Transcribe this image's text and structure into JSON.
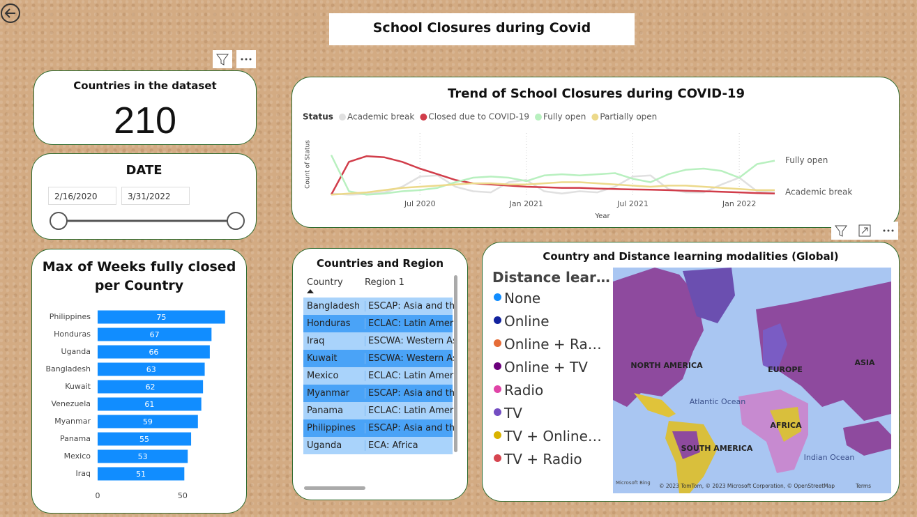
{
  "title": "School Closures during Covid",
  "kpi": {
    "label": "Countries in the dataset",
    "value": 210
  },
  "date_slicer": {
    "title": "DATE",
    "start": "2/16/2020",
    "end": "3/31/2022"
  },
  "chart_data": [
    {
      "type": "barh",
      "title": "Max of Weeks fully closed per Country",
      "categories": [
        "Philippines",
        "Honduras",
        "Uganda",
        "Bangladesh",
        "Kuwait",
        "Venezuela",
        "Myanmar",
        "Panama",
        "Mexico",
        "Iraq"
      ],
      "values": [
        75,
        67,
        66,
        63,
        62,
        61,
        59,
        55,
        53,
        51
      ],
      "color": "#118dff",
      "xlim": [
        0,
        80
      ],
      "xticks": [
        0,
        50
      ]
    },
    {
      "type": "line",
      "title": "Trend of School Closures during COVID-19",
      "legend_title": "Status",
      "xlabel": "Year",
      "ylabel": "Count of Status",
      "x": [
        "2020-02",
        "2020-03",
        "2020-04",
        "2020-05",
        "2020-06",
        "2020-07",
        "2020-08",
        "2020-09",
        "2020-10",
        "2020-11",
        "2020-12",
        "2021-01",
        "2021-02",
        "2021-03",
        "2021-04",
        "2021-05",
        "2021-06",
        "2021-07",
        "2021-08",
        "2021-09",
        "2021-10",
        "2021-11",
        "2021-12",
        "2022-01",
        "2022-02",
        "2022-03"
      ],
      "xlim": [
        "2020-02",
        "2022-03"
      ],
      "xticks": [
        {
          "value": "2020-07",
          "label": "Jul 2020"
        },
        {
          "value": "2021-01",
          "label": "Jan 2021"
        },
        {
          "value": "2021-07",
          "label": "Jul 2021"
        },
        {
          "value": "2022-01",
          "label": "Jan 2022"
        }
      ],
      "ylim": [
        0,
        200
      ],
      "grid": true,
      "series": [
        {
          "name": "Academic break",
          "color": "#e0e0e0",
          "end_label": true,
          "values": [
            10,
            5,
            8,
            15,
            40,
            85,
            90,
            40,
            20,
            15,
            60,
            70,
            20,
            10,
            20,
            15,
            40,
            85,
            90,
            30,
            15,
            15,
            50,
            80,
            20,
            15
          ]
        },
        {
          "name": "Closed due to COVID-19",
          "color": "#d13d4a",
          "end_label": false,
          "values": [
            5,
            150,
            175,
            170,
            150,
            120,
            95,
            70,
            55,
            50,
            45,
            40,
            38,
            35,
            35,
            32,
            30,
            28,
            27,
            25,
            22,
            20,
            18,
            15,
            12,
            10
          ]
        },
        {
          "name": "Fully open",
          "color": "#b8f0bf",
          "end_label": true,
          "values": [
            180,
            20,
            5,
            10,
            20,
            25,
            35,
            60,
            80,
            85,
            80,
            65,
            90,
            95,
            90,
            95,
            100,
            75,
            60,
            95,
            115,
            120,
            110,
            80,
            140,
            155
          ]
        },
        {
          "name": "Partially open",
          "color": "#ecd98a",
          "end_label": false,
          "values": [
            5,
            10,
            15,
            25,
            35,
            40,
            45,
            50,
            55,
            55,
            50,
            50,
            55,
            60,
            60,
            55,
            50,
            45,
            40,
            45,
            45,
            40,
            35,
            30,
            25,
            25
          ]
        }
      ]
    }
  ],
  "table": {
    "title": "Countries and Region",
    "columns": [
      "Country",
      "Region 1"
    ],
    "rows": [
      [
        "Bangladesh",
        "ESCAP: Asia and the Pacific"
      ],
      [
        "Honduras",
        "ECLAC: Latin America and the Caribbean"
      ],
      [
        "Iraq",
        "ESCWA: Western Asia"
      ],
      [
        "Kuwait",
        "ESCWA: Western Asia"
      ],
      [
        "Mexico",
        "ECLAC: Latin America and the Caribbean"
      ],
      [
        "Myanmar",
        "ESCAP: Asia and the Pacific"
      ],
      [
        "Panama",
        "ECLAC: Latin America and the Caribbean"
      ],
      [
        "Philippines",
        "ESCAP: Asia and the Pacific"
      ],
      [
        "Uganda",
        "ECA: Africa"
      ]
    ]
  },
  "map": {
    "title": "Country and Distance learning modalities (Global)",
    "legend_title": "Distance learning modalities",
    "legend": [
      {
        "label": "None",
        "color": "#118dff"
      },
      {
        "label": "Online",
        "color": "#12239e"
      },
      {
        "label": "Online + Radio",
        "color": "#e66c37"
      },
      {
        "label": "Online + TV",
        "color": "#6b007b"
      },
      {
        "label": "Radio",
        "color": "#e044a7"
      },
      {
        "label": "TV",
        "color": "#744ec2"
      },
      {
        "label": "TV + Online + Radio",
        "color": "#d9b300"
      },
      {
        "label": "TV + Radio",
        "color": "#d64550"
      }
    ],
    "places": [
      "NORTH AMERICA",
      "EUROPE",
      "ASIA",
      "Atlantic Ocean",
      "SOUTH AMERICA",
      "AFRICA",
      "Indian Ocean"
    ],
    "brand": "Microsoft Bing",
    "attribution": "© 2023 TomTom, © 2023 Microsoft Corporation, © OpenStreetMap",
    "terms": "Terms"
  }
}
